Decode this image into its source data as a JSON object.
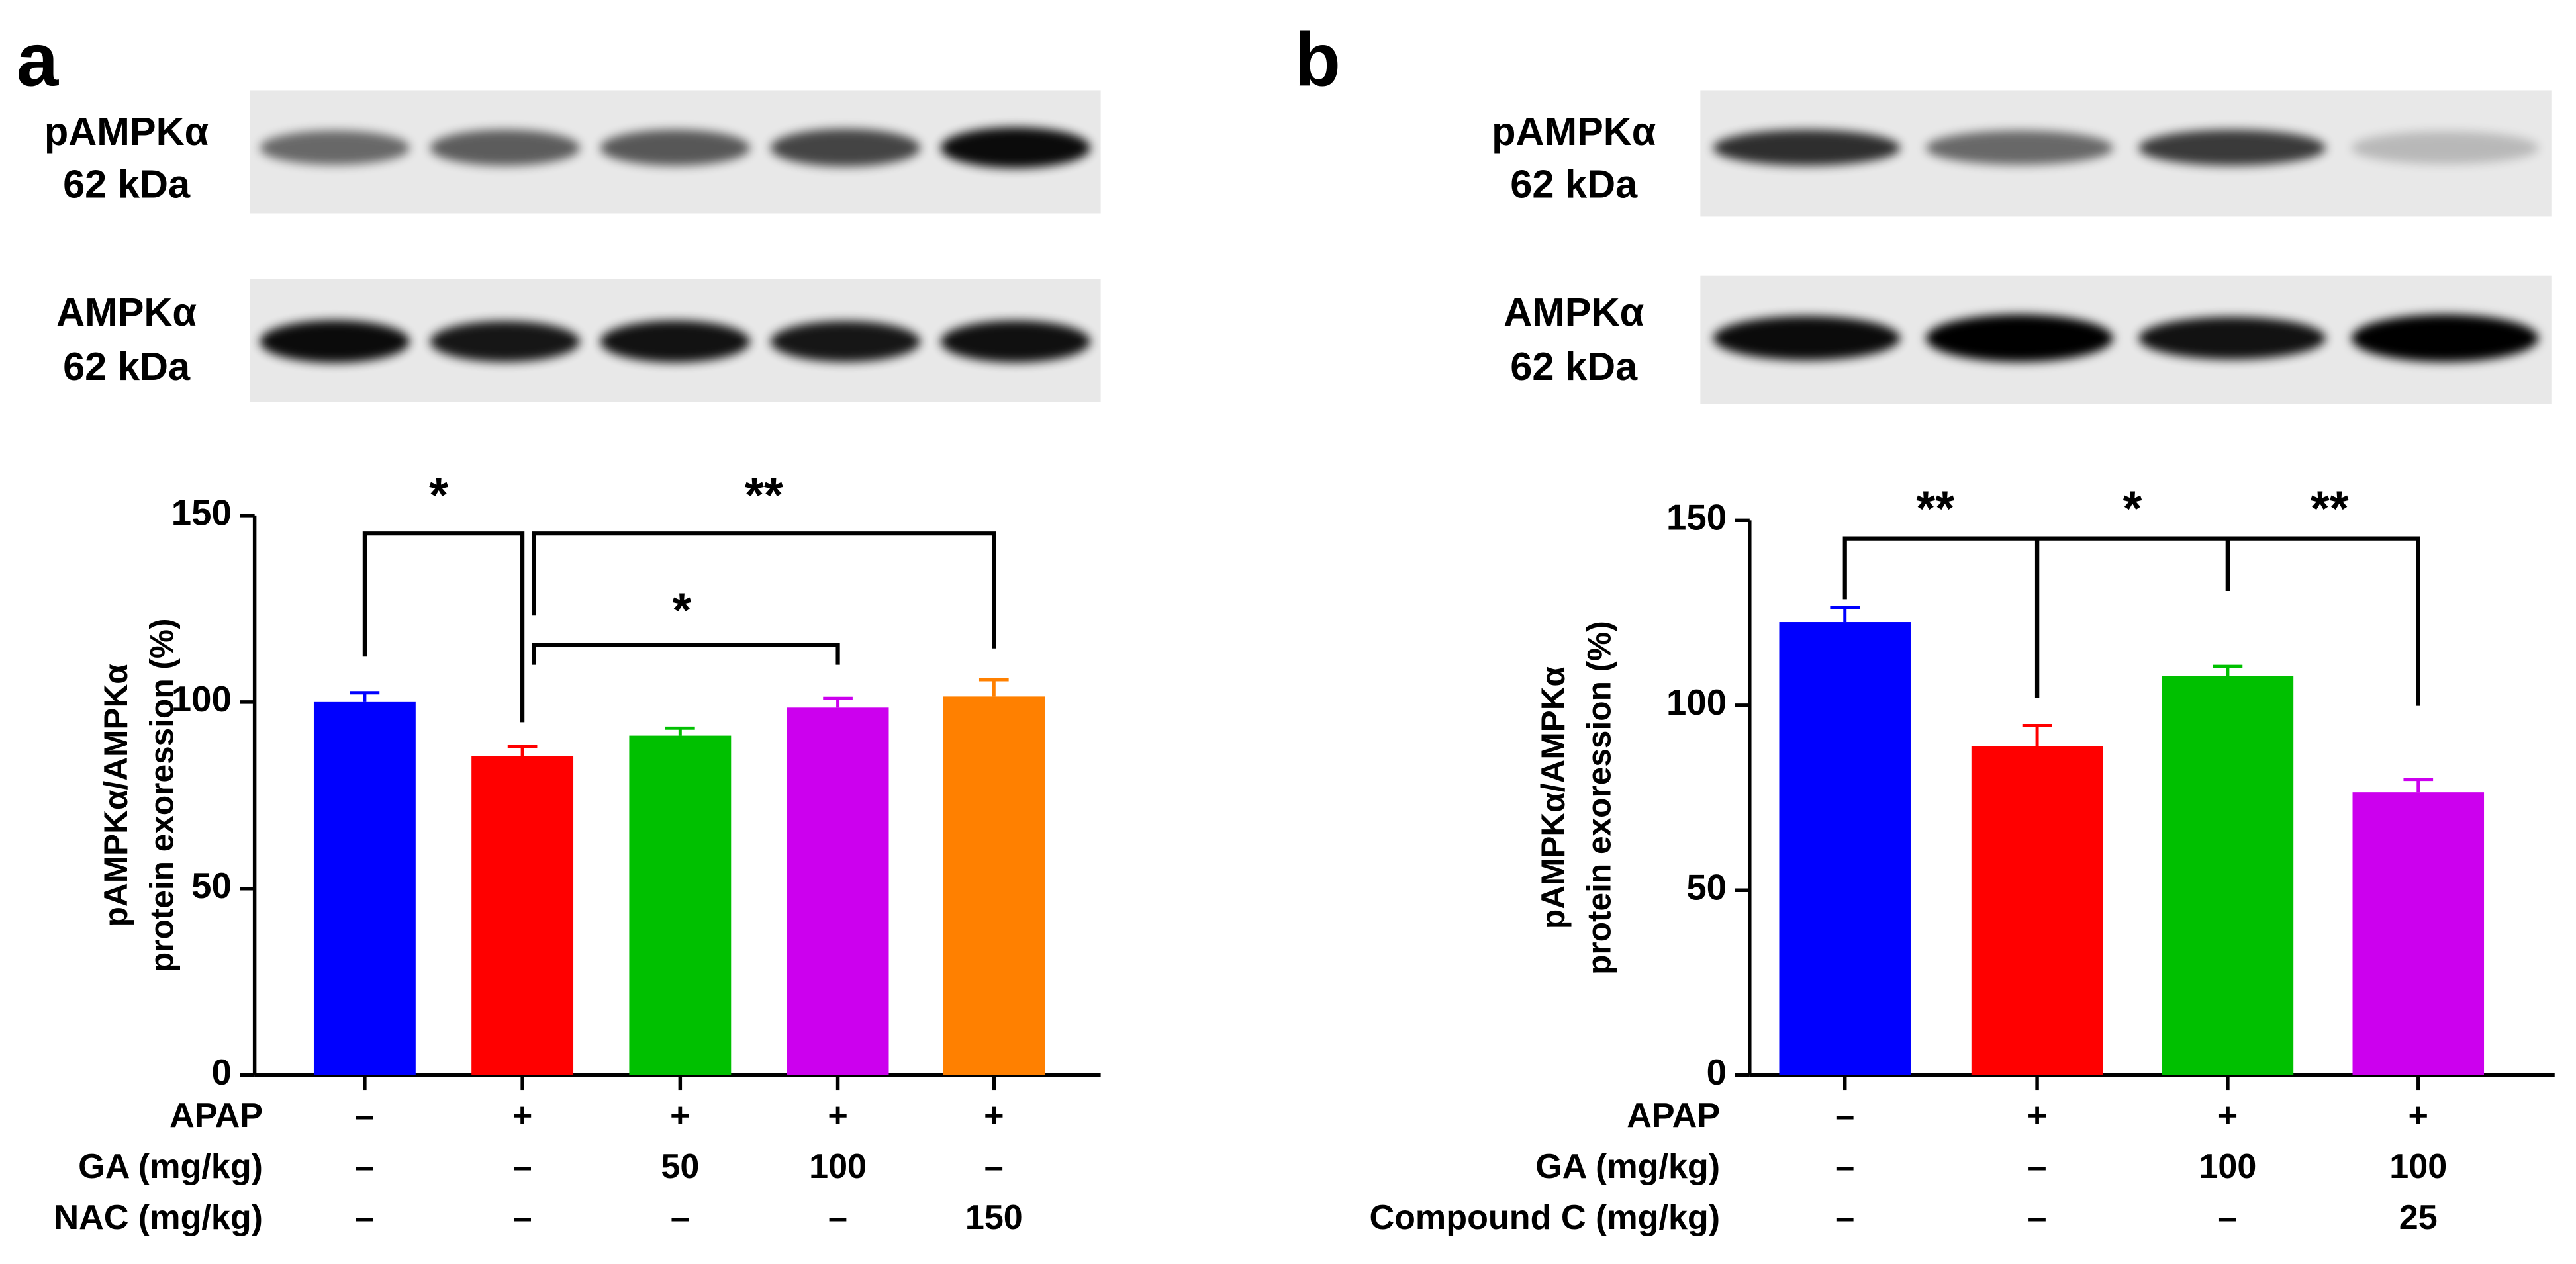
{
  "chart_data": [
    {
      "type": "bar",
      "panel_label": "a",
      "blot_labels": [
        "pAMPKα",
        "62 kDa",
        "AMPKα",
        "62 kDa"
      ],
      "y_label": [
        "pAMPKα/AMPKα",
        "protein exoression (%)"
      ],
      "values": [
        100,
        85.5,
        91,
        98.5,
        101.5
      ],
      "errors": [
        2.5,
        2.5,
        2,
        2.5,
        4.5
      ],
      "colors": [
        "#0000ff",
        "#ff0000",
        "#00c000",
        "#cc00ee",
        "#ff8000"
      ],
      "ylim": [
        0,
        150
      ],
      "yticks": [
        0,
        50,
        100,
        150
      ],
      "annotations": [
        "*",
        "**",
        "*"
      ],
      "conditions": [
        {
          "label": "APAP",
          "values": [
            "–",
            "+",
            "+",
            "+",
            "+"
          ]
        },
        {
          "label": "GA (mg/kg)",
          "values": [
            "–",
            "–",
            "50",
            "100",
            "–"
          ]
        },
        {
          "label": "NAC (mg/kg)",
          "values": [
            "–",
            "–",
            "–",
            "–",
            "150"
          ]
        }
      ]
    },
    {
      "type": "bar",
      "panel_label": "b",
      "blot_labels": [
        "pAMPKα",
        "62 kDa",
        "AMPKα",
        "62 kDa"
      ],
      "y_label": [
        "pAMPKα/AMPKα",
        "protein exoression (%)"
      ],
      "values": [
        122.5,
        89,
        108,
        76.5
      ],
      "errors": [
        4,
        5.5,
        2.5,
        3.5
      ],
      "colors": [
        "#0000ff",
        "#ff0000",
        "#00c000",
        "#cc00ee"
      ],
      "ylim": [
        0,
        150
      ],
      "yticks": [
        0,
        50,
        100,
        150
      ],
      "annotations": [
        "**",
        "*",
        "**"
      ],
      "conditions": [
        {
          "label": "APAP",
          "values": [
            "–",
            "+",
            "+",
            "+"
          ]
        },
        {
          "label": "GA (mg/kg)",
          "values": [
            "–",
            "–",
            "100",
            "100"
          ]
        },
        {
          "label": "Compound C (mg/kg)",
          "values": [
            "–",
            "–",
            "–",
            "25"
          ]
        }
      ]
    }
  ]
}
